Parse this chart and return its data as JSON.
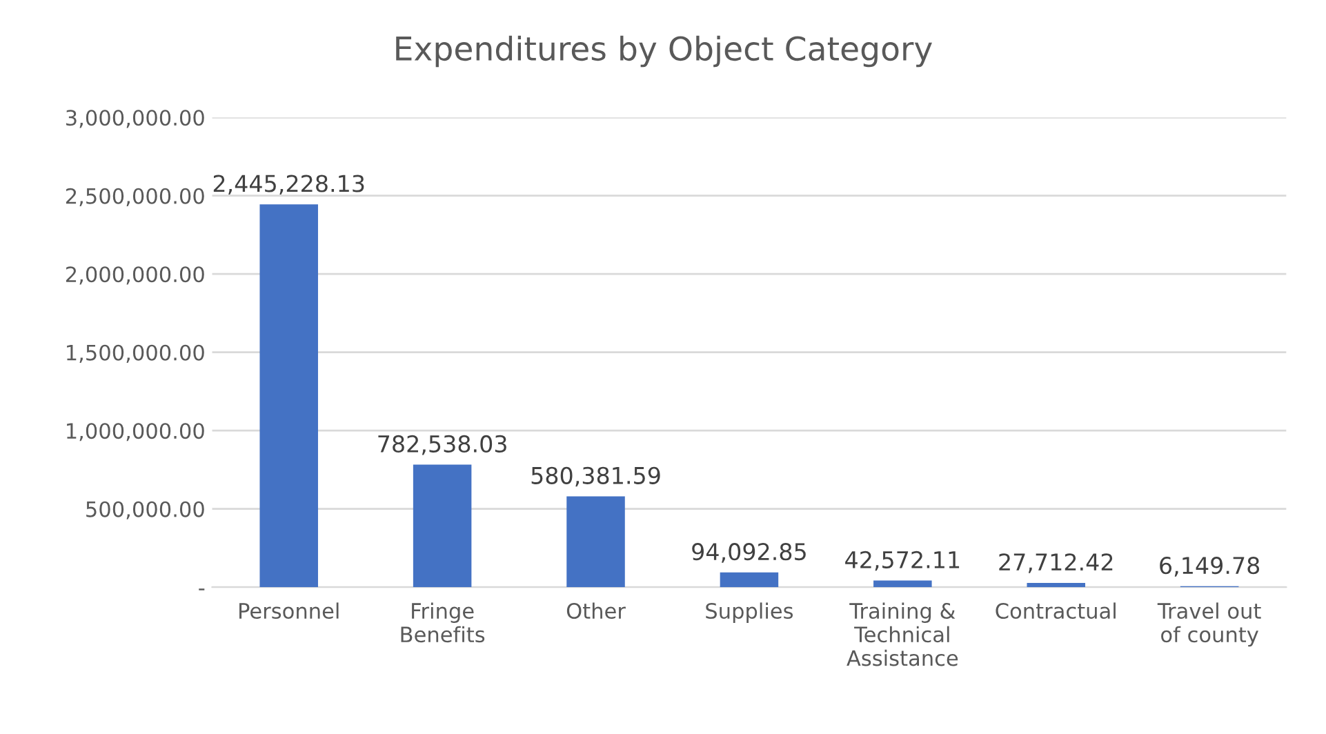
{
  "chart_data": {
    "type": "bar",
    "title": "Expenditures by Object Category",
    "categories": [
      "Personnel",
      "Fringe Benefits",
      "Other",
      "Supplies",
      "Training & Technical Assistance",
      "Contractual",
      "Travel out of county"
    ],
    "values": [
      2445228.13,
      782538.03,
      580381.59,
      94092.85,
      42572.11,
      27712.42,
      6149.78
    ],
    "value_labels": [
      "2,445,228.13",
      "782,538.03",
      "580,381.59",
      "94,092.85",
      "42,572.11",
      "27,712.42",
      "6,149.78"
    ],
    "color": "#4472c4",
    "ylim": [
      0,
      3000000
    ],
    "yticks": [
      {
        "value": 0,
        "label": "-"
      },
      {
        "value": 500000,
        "label": "500,000.00"
      },
      {
        "value": 1000000,
        "label": "1,000,000.00"
      },
      {
        "value": 1500000,
        "label": "1,500,000.00"
      },
      {
        "value": 2000000,
        "label": "2,000,000.00"
      },
      {
        "value": 2500000,
        "label": "2,500,000.00"
      },
      {
        "value": 3000000,
        "label": "3,000,000.00"
      }
    ],
    "grid": "y"
  }
}
